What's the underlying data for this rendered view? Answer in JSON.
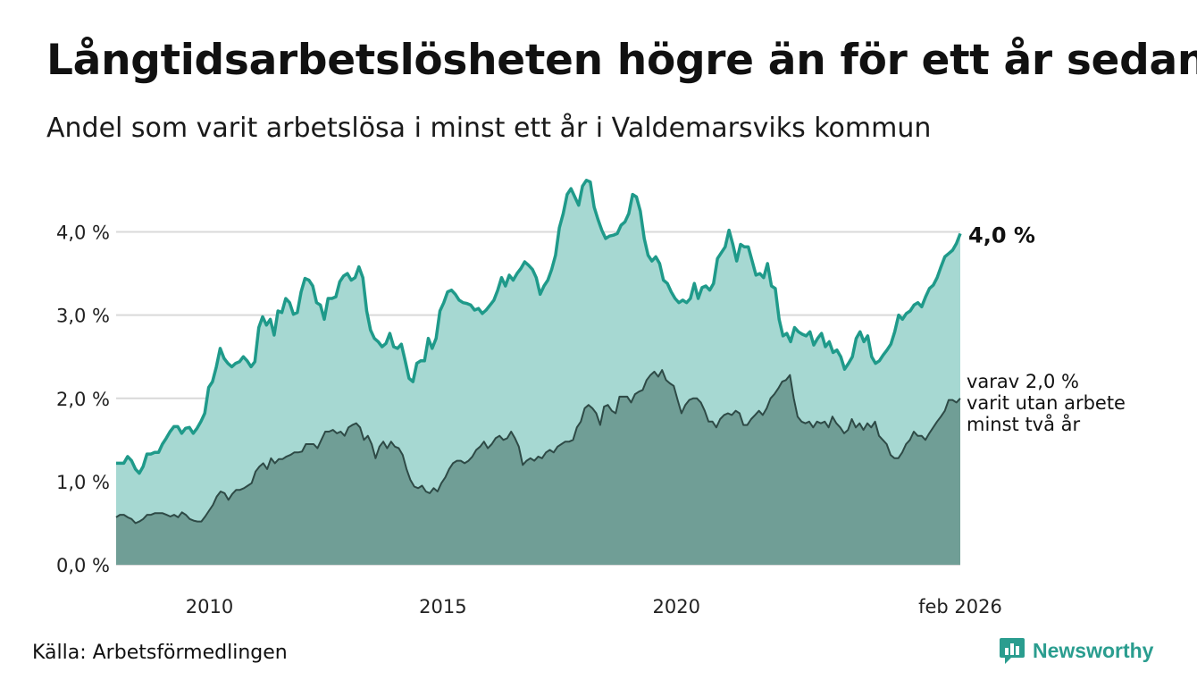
{
  "title": "Långtidsarbetslösheten högre än för ett år sedan",
  "subtitle": "Andel som varit arbetslösa i minst ett år i Valdemarsviks kommun",
  "source": "Källa: Arbetsförmedlingen",
  "brand": "Newsworthy",
  "colors": {
    "area_total": "#a6d8d2",
    "line_total": "#1f9a8a",
    "area_long": "#709e96",
    "line_long": "#2e4a46",
    "grid": "#d9d9d9"
  },
  "chart_data": {
    "type": "area",
    "title": "Andel som varit arbetslösa i minst ett år",
    "x_start": 2008.0,
    "x_step_years": 0.0833,
    "xlim": [
      2008.0,
      2026.1
    ],
    "ylim": [
      0,
      4.8
    ],
    "y_ticks": [
      0,
      1,
      2,
      3,
      4
    ],
    "y_tick_labels": [
      "0,0 %",
      "1,0 %",
      "2,0 %",
      "3,0 %",
      "4,0 %"
    ],
    "x_tick_values": [
      2010,
      2015,
      2020,
      2026.08
    ],
    "x_tick_labels": [
      "2010",
      "2015",
      "2020",
      "feb 2026"
    ],
    "series": [
      {
        "name": "Arbetslösa minst ett år",
        "end_label": "4,0 %",
        "values": [
          1.22,
          1.22,
          1.22,
          1.3,
          1.25,
          1.15,
          1.1,
          1.18,
          1.33,
          1.33,
          1.35,
          1.35,
          1.45,
          1.52,
          1.6,
          1.66,
          1.66,
          1.58,
          1.64,
          1.65,
          1.58,
          1.64,
          1.72,
          1.82,
          2.13,
          2.2,
          2.38,
          2.6,
          2.48,
          2.42,
          2.38,
          2.42,
          2.44,
          2.5,
          2.45,
          2.38,
          2.44,
          2.85,
          2.98,
          2.88,
          2.95,
          2.76,
          3.05,
          3.03,
          3.2,
          3.15,
          3.01,
          3.03,
          3.28,
          3.44,
          3.42,
          3.35,
          3.15,
          3.12,
          2.95,
          3.2,
          3.2,
          3.22,
          3.4,
          3.47,
          3.5,
          3.42,
          3.45,
          3.58,
          3.45,
          3.05,
          2.82,
          2.72,
          2.68,
          2.62,
          2.66,
          2.78,
          2.62,
          2.6,
          2.65,
          2.45,
          2.24,
          2.2,
          2.42,
          2.45,
          2.45,
          2.72,
          2.6,
          2.72,
          3.05,
          3.15,
          3.28,
          3.3,
          3.25,
          3.18,
          3.15,
          3.14,
          3.12,
          3.06,
          3.08,
          3.02,
          3.06,
          3.12,
          3.18,
          3.3,
          3.45,
          3.35,
          3.48,
          3.42,
          3.5,
          3.56,
          3.64,
          3.6,
          3.55,
          3.45,
          3.25,
          3.35,
          3.42,
          3.55,
          3.72,
          4.05,
          4.22,
          4.45,
          4.52,
          4.42,
          4.32,
          4.55,
          4.62,
          4.6,
          4.3,
          4.15,
          4.02,
          3.92,
          3.95,
          3.96,
          3.98,
          4.08,
          4.12,
          4.22,
          4.45,
          4.42,
          4.25,
          3.92,
          3.72,
          3.65,
          3.7,
          3.62,
          3.42,
          3.38,
          3.28,
          3.2,
          3.15,
          3.18,
          3.15,
          3.2,
          3.38,
          3.2,
          3.33,
          3.35,
          3.3,
          3.38,
          3.68,
          3.75,
          3.82,
          4.02,
          3.85,
          3.65,
          3.85,
          3.82,
          3.82,
          3.65,
          3.48,
          3.5,
          3.45,
          3.62,
          3.35,
          3.32,
          2.95,
          2.75,
          2.78,
          2.68,
          2.85,
          2.8,
          2.77,
          2.75,
          2.8,
          2.64,
          2.72,
          2.78,
          2.62,
          2.68,
          2.55,
          2.58,
          2.5,
          2.35,
          2.42,
          2.5,
          2.72,
          2.8,
          2.68,
          2.75,
          2.5,
          2.42,
          2.45,
          2.52,
          2.58,
          2.65,
          2.8,
          3.0,
          2.95,
          3.02,
          3.05,
          3.12,
          3.15,
          3.1,
          3.22,
          3.32,
          3.36,
          3.45,
          3.58,
          3.7,
          3.74,
          3.78,
          3.86,
          3.98
        ]
      },
      {
        "name": "varav utan arbete minst två år",
        "end_label_lines": [
          "varav 2,0 %",
          "varit utan arbete",
          "minst två år"
        ],
        "values": [
          0.57,
          0.6,
          0.6,
          0.57,
          0.55,
          0.5,
          0.52,
          0.55,
          0.6,
          0.6,
          0.62,
          0.62,
          0.62,
          0.6,
          0.58,
          0.6,
          0.57,
          0.63,
          0.6,
          0.55,
          0.53,
          0.52,
          0.52,
          0.58,
          0.65,
          0.72,
          0.82,
          0.88,
          0.86,
          0.78,
          0.85,
          0.9,
          0.9,
          0.92,
          0.95,
          0.98,
          1.12,
          1.18,
          1.22,
          1.15,
          1.28,
          1.22,
          1.27,
          1.27,
          1.3,
          1.32,
          1.35,
          1.35,
          1.36,
          1.45,
          1.45,
          1.45,
          1.4,
          1.5,
          1.6,
          1.6,
          1.62,
          1.58,
          1.6,
          1.55,
          1.65,
          1.68,
          1.7,
          1.65,
          1.5,
          1.55,
          1.45,
          1.28,
          1.42,
          1.48,
          1.4,
          1.48,
          1.42,
          1.4,
          1.32,
          1.15,
          1.02,
          0.94,
          0.92,
          0.95,
          0.88,
          0.86,
          0.92,
          0.88,
          0.98,
          1.05,
          1.15,
          1.22,
          1.25,
          1.25,
          1.22,
          1.25,
          1.3,
          1.38,
          1.42,
          1.48,
          1.4,
          1.45,
          1.52,
          1.55,
          1.5,
          1.52,
          1.6,
          1.52,
          1.42,
          1.2,
          1.25,
          1.28,
          1.25,
          1.3,
          1.28,
          1.35,
          1.38,
          1.35,
          1.42,
          1.45,
          1.48,
          1.48,
          1.5,
          1.65,
          1.72,
          1.88,
          1.92,
          1.88,
          1.82,
          1.68,
          1.9,
          1.92,
          1.85,
          1.82,
          2.02,
          2.02,
          2.02,
          1.95,
          2.05,
          2.08,
          2.1,
          2.22,
          2.28,
          2.32,
          2.26,
          2.34,
          2.22,
          2.18,
          2.15,
          1.98,
          1.82,
          1.92,
          1.98,
          2.0,
          2.0,
          1.95,
          1.85,
          1.72,
          1.72,
          1.65,
          1.75,
          1.8,
          1.82,
          1.8,
          1.85,
          1.82,
          1.68,
          1.68,
          1.75,
          1.8,
          1.85,
          1.8,
          1.88,
          2.0,
          2.05,
          2.12,
          2.2,
          2.22,
          2.28,
          2.0,
          1.78,
          1.72,
          1.7,
          1.72,
          1.65,
          1.72,
          1.7,
          1.72,
          1.65,
          1.78,
          1.7,
          1.65,
          1.58,
          1.62,
          1.75,
          1.65,
          1.7,
          1.62,
          1.7,
          1.65,
          1.72,
          1.55,
          1.5,
          1.45,
          1.32,
          1.28,
          1.28,
          1.35,
          1.45,
          1.5,
          1.6,
          1.55,
          1.55,
          1.5,
          1.58,
          1.65,
          1.72,
          1.78,
          1.85,
          1.98,
          1.98,
          1.95,
          2.0
        ]
      }
    ]
  }
}
